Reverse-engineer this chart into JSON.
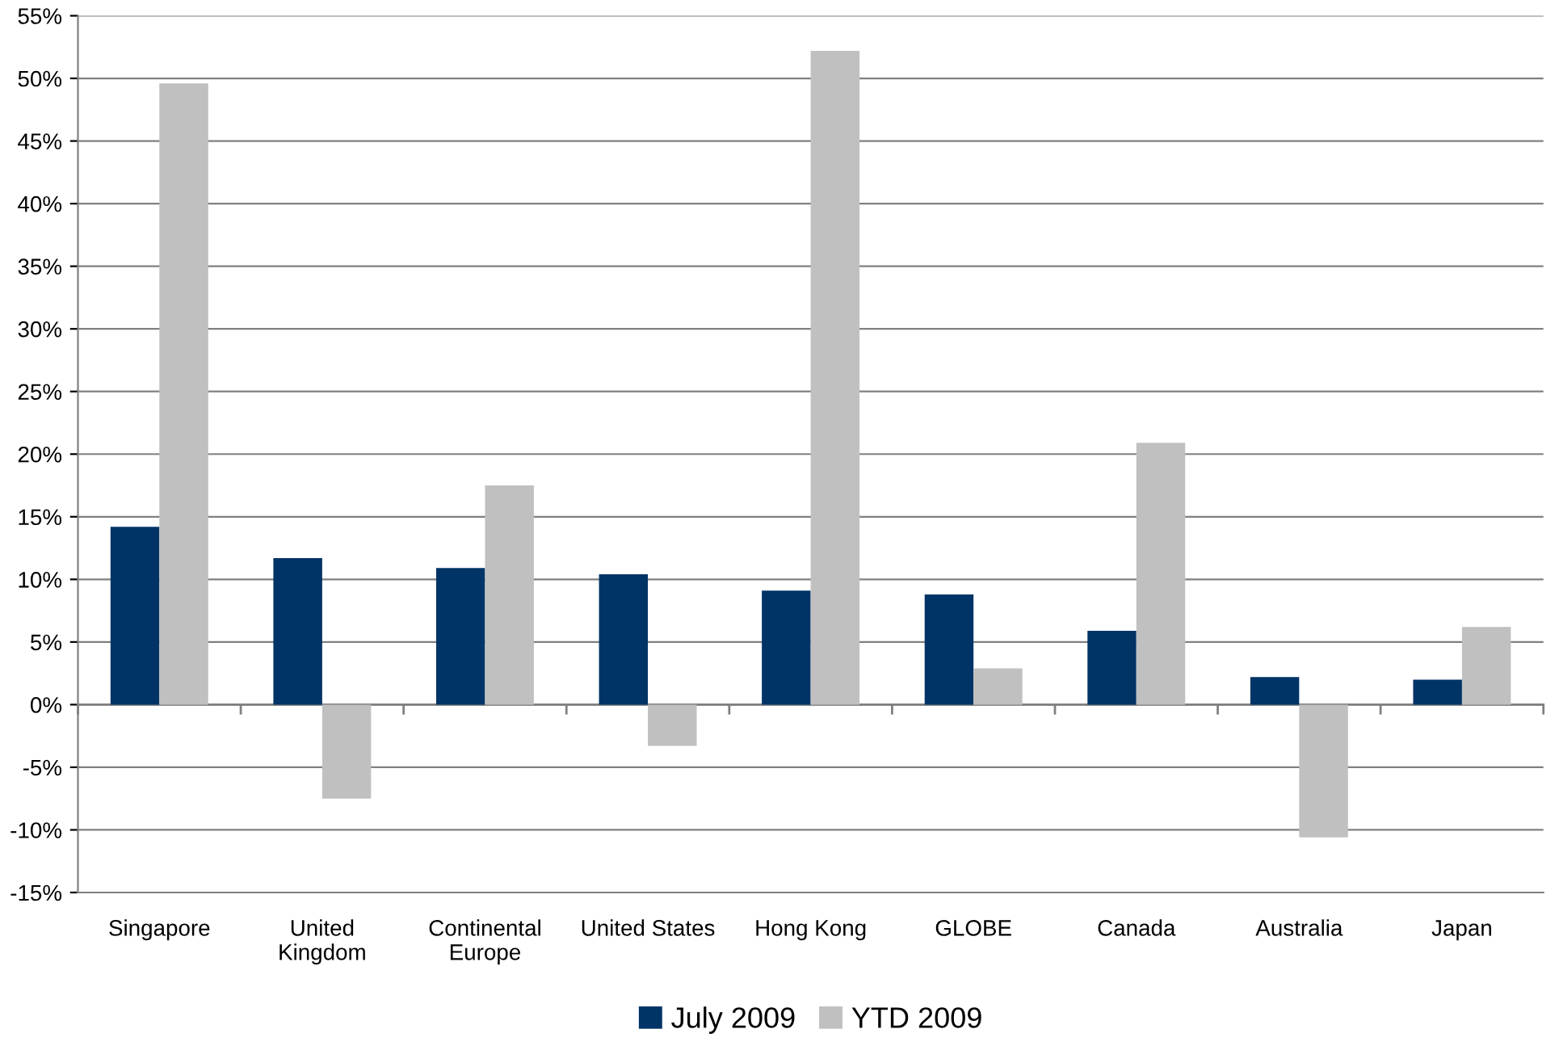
{
  "chart_data": {
    "type": "bar",
    "categories": [
      "Singapore",
      "United\nKingdom",
      "Continental\nEurope",
      "United States",
      "Hong Kong",
      "GLOBE",
      "Canada",
      "Australia",
      "Japan"
    ],
    "series": [
      {
        "name": "July 2009",
        "color": "#003366",
        "values": [
          14.2,
          11.7,
          10.9,
          10.4,
          9.1,
          8.8,
          5.9,
          2.2,
          2.0
        ]
      },
      {
        "name": "YTD 2009",
        "color": "#c0c0c0",
        "values": [
          49.6,
          -7.5,
          17.5,
          -3.3,
          52.2,
          2.9,
          20.9,
          -10.6,
          6.2
        ]
      }
    ],
    "ylim": [
      -15,
      55
    ],
    "yticks": [
      {
        "value": -15,
        "label": "-15%"
      },
      {
        "value": -10,
        "label": "-10%"
      },
      {
        "value": -5,
        "label": "-5%"
      },
      {
        "value": 0,
        "label": "0%"
      },
      {
        "value": 5,
        "label": "5%"
      },
      {
        "value": 10,
        "label": "10%"
      },
      {
        "value": 15,
        "label": "15%"
      },
      {
        "value": 20,
        "label": "20%"
      },
      {
        "value": 25,
        "label": "25%"
      },
      {
        "value": 30,
        "label": "30%"
      },
      {
        "value": 35,
        "label": "35%"
      },
      {
        "value": 40,
        "label": "40%"
      },
      {
        "value": 45,
        "label": "45%"
      },
      {
        "value": 50,
        "label": "50%"
      },
      {
        "value": 55,
        "label": "55%"
      }
    ],
    "grid": "y",
    "legend": "bottom"
  }
}
